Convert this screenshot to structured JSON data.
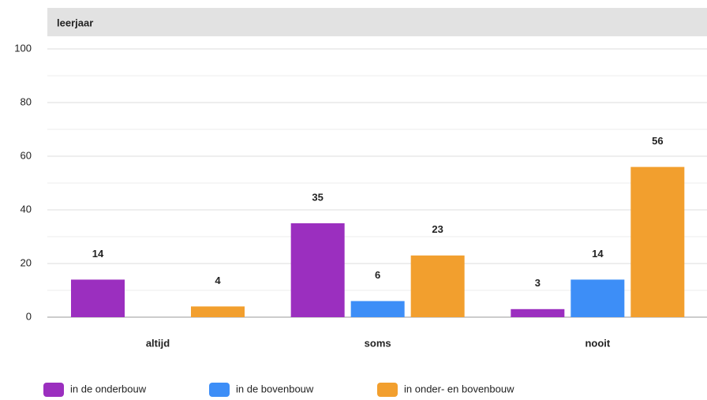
{
  "chart_data": {
    "type": "bar",
    "title": "leerjaar",
    "categories": [
      "altijd",
      "soms",
      "nooit"
    ],
    "series": [
      {
        "name": "in de onderbouw",
        "color": "#9b2fbf",
        "values": [
          14,
          35,
          3
        ]
      },
      {
        "name": "in de bovenbouw",
        "color": "#3d8ef7",
        "values": [
          null,
          6,
          14
        ]
      },
      {
        "name": "in onder- en bovenbouw",
        "color": "#f29f2e",
        "values": [
          4,
          23,
          56
        ]
      }
    ],
    "ylim": [
      0,
      100
    ],
    "yticks": [
      0,
      20,
      40,
      60,
      80,
      100
    ],
    "grid": true,
    "legend": "bottom"
  }
}
